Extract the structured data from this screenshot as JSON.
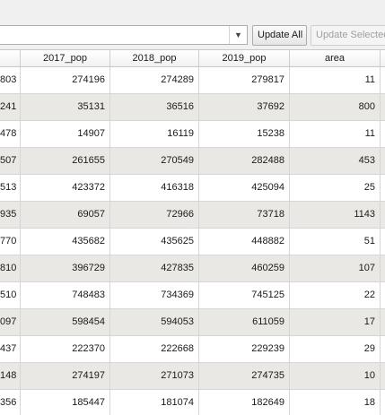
{
  "toolbar": {
    "field_value": "",
    "update_all_label": "Update All",
    "update_selected_label": "Update Selected"
  },
  "table": {
    "columns": [
      "",
      "2017_pop",
      "2018_pop",
      "2019_pop",
      "area",
      ""
    ],
    "rows": [
      [
        "803",
        "274196",
        "274289",
        "279817",
        "11"
      ],
      [
        "241",
        "35131",
        "36516",
        "37692",
        "800"
      ],
      [
        "478",
        "14907",
        "16119",
        "15238",
        "11"
      ],
      [
        "507",
        "261655",
        "270549",
        "282488",
        "453"
      ],
      [
        "513",
        "423372",
        "416318",
        "425094",
        "25"
      ],
      [
        "935",
        "69057",
        "72966",
        "73718",
        "1143"
      ],
      [
        "770",
        "435682",
        "435625",
        "448882",
        "51"
      ],
      [
        "810",
        "396729",
        "427835",
        "460259",
        "107"
      ],
      [
        "510",
        "748483",
        "734369",
        "745125",
        "22"
      ],
      [
        "097",
        "598454",
        "594053",
        "611059",
        "17"
      ],
      [
        "437",
        "222370",
        "222668",
        "229239",
        "29"
      ],
      [
        "148",
        "274197",
        "271073",
        "274735",
        "10"
      ],
      [
        "356",
        "185447",
        "181074",
        "182649",
        "18"
      ]
    ]
  }
}
